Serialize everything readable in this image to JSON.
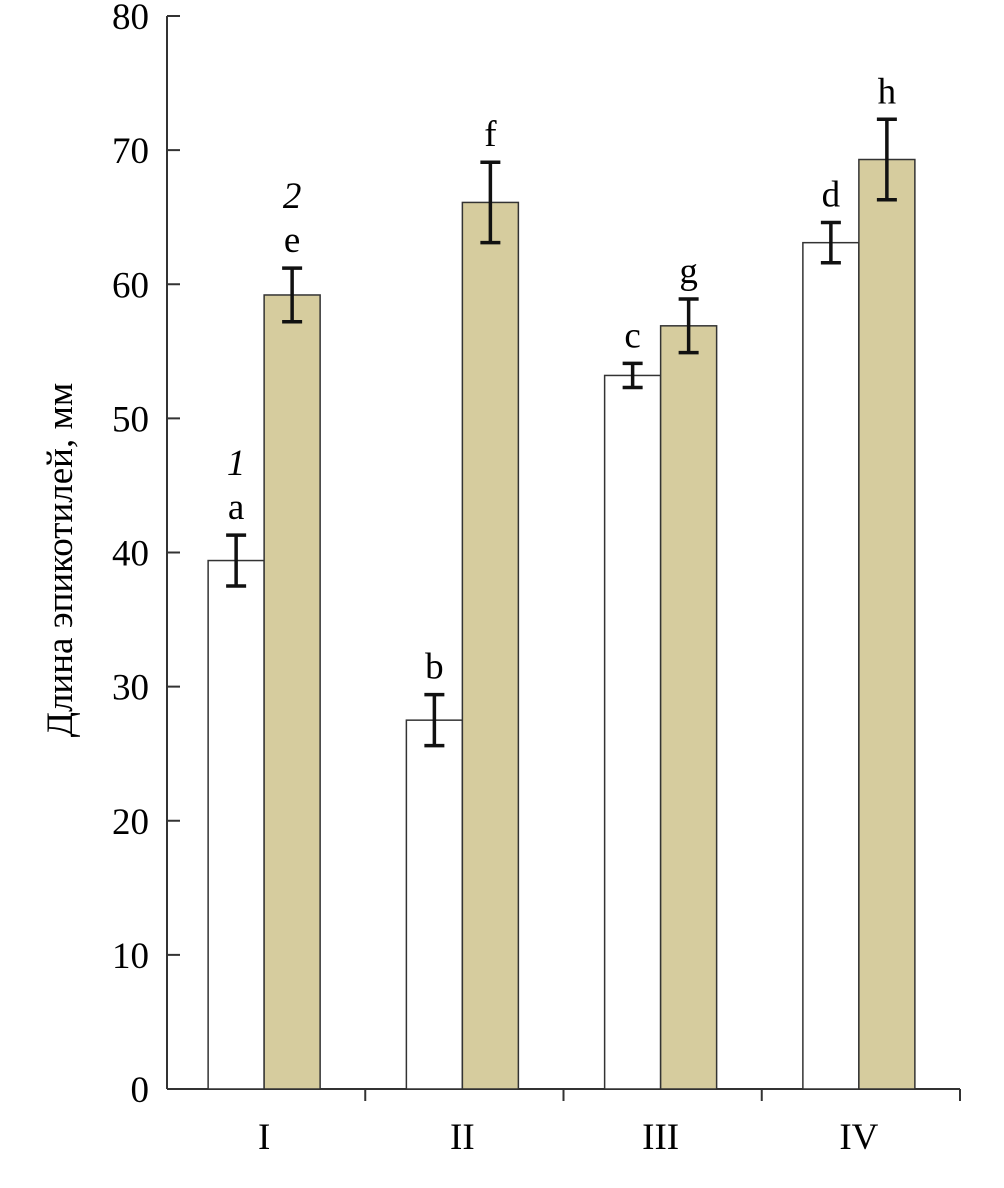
{
  "chart_data": {
    "type": "bar",
    "title": "",
    "xlabel": "",
    "ylabel": "Длина эпикотилей, мм",
    "ylim": [
      0,
      80
    ],
    "yticks": [
      0,
      10,
      20,
      30,
      40,
      50,
      60,
      70,
      80
    ],
    "categories": [
      "I",
      "II",
      "III",
      "IV"
    ],
    "grid": false,
    "series": [
      {
        "name": "1",
        "color": "#ffffff",
        "values": [
          39.4,
          27.5,
          53.2,
          63.1
        ],
        "errors": [
          1.9,
          1.9,
          0.9,
          1.5
        ],
        "letters": [
          "a",
          "b",
          "c",
          "d"
        ]
      },
      {
        "name": "2",
        "color": "#d6cc9e",
        "values": [
          59.2,
          66.1,
          56.9,
          69.3
        ],
        "errors": [
          2.0,
          3.0,
          2.0,
          3.0
        ],
        "letters": [
          "e",
          "f",
          "g",
          "h"
        ]
      }
    ],
    "series_labels_placement": "above first group bars"
  }
}
